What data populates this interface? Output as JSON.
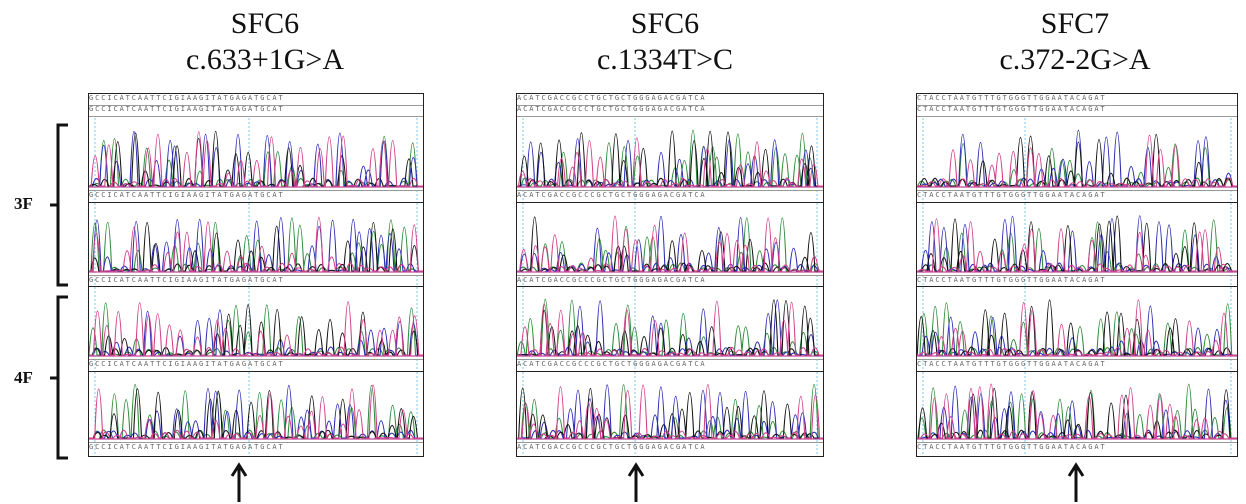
{
  "panels": [
    {
      "id": "sfc6-a",
      "gene": "SFC6",
      "variant": "c.633+1G>A",
      "ref_sequence": "GCCICATCAATTCIGIAAGITATGAGATGCAT",
      "track_sequence": "GCCICATCAATTCIGIAAGITATGAGATGCAT"
    },
    {
      "id": "sfc6-b",
      "gene": "SFC6",
      "variant": "c.1334T>C",
      "ref_sequence": "ACATCGACCGCCTGCTGCTGGGAGACGATCA",
      "track_sequence": "ACATCGACCGCCCGCTGCTGGGAGACGATCA"
    },
    {
      "id": "sfc7",
      "gene": "SFC7",
      "variant": "c.372-2G>A",
      "ref_sequence": "CTACCTAATGTTTGTGGGTTGGAATACAGAT",
      "track_sequence": "CTACCTAATGTTTGTGGGTTGGAATACAGAT"
    }
  ],
  "groups": [
    {
      "label": "3F"
    },
    {
      "label": "4F"
    }
  ],
  "colors": {
    "A": "#2e8b3a",
    "C": "#2b2bb5",
    "G": "#111111",
    "T": "#d0408a"
  }
}
